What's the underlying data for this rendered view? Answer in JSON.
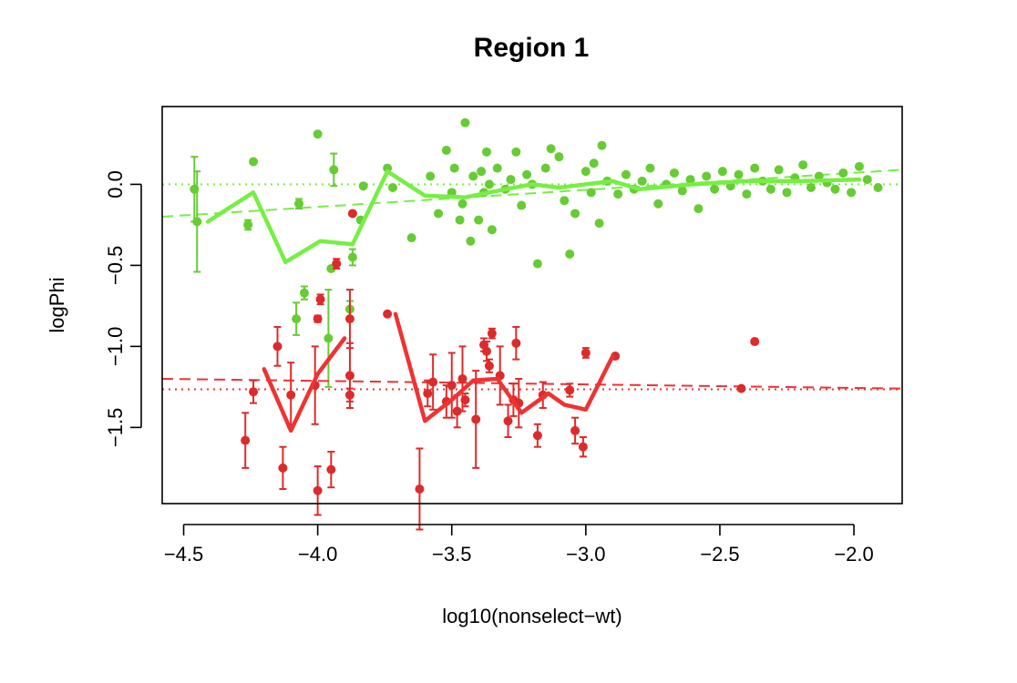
{
  "chart_data": {
    "type": "scatter",
    "title": "Region 1",
    "xlabel": "log10(nonselect−wt)",
    "ylabel": "logPhi",
    "xlim": [
      -4.58,
      -1.82
    ],
    "ylim": [
      -1.97,
      0.48
    ],
    "grid": false,
    "legend": "none",
    "x_ticks": [
      -4.5,
      -4.0,
      -3.5,
      -3.0,
      -2.5,
      -2.0
    ],
    "x_tick_labels": [
      "−4.5",
      "−4.0",
      "−3.5",
      "−3.0",
      "−2.5",
      "−2.0"
    ],
    "y_ticks": [
      0.0,
      -0.5,
      -1.0,
      -1.5
    ],
    "y_tick_labels": [
      "0.0",
      "−0.5",
      "−1.0",
      "−1.5"
    ],
    "colors": {
      "green": "#66cc33",
      "green_line": "#77ee44",
      "red": "#dd2b2b",
      "red_line": "#ee3333"
    },
    "series": [
      {
        "color": "green",
        "points": [
          [
            -4.46,
            -0.03,
            0.2
          ],
          [
            -4.45,
            -0.23,
            0.31
          ],
          [
            -4.26,
            -0.25,
            0.03
          ],
          [
            -4.24,
            0.14,
            0
          ],
          [
            -4.07,
            -0.12,
            0.03
          ],
          [
            -3.94,
            0.09,
            0.1
          ],
          [
            -4.0,
            0.31,
            0
          ],
          [
            -3.87,
            -0.45,
            0.05
          ],
          [
            -3.95,
            -0.52,
            0
          ],
          [
            -3.93,
            -0.49,
            0
          ],
          [
            -4.05,
            -0.67,
            0.04
          ],
          [
            -4.08,
            -0.83,
            0.1
          ],
          [
            -3.96,
            -0.95,
            0.3
          ],
          [
            -3.88,
            -0.77,
            0.05
          ],
          [
            -3.83,
            -0.01,
            0
          ],
          [
            -3.84,
            -0.22,
            0
          ],
          [
            -3.74,
            0.1,
            0
          ],
          [
            -3.72,
            -0.02,
            0
          ],
          [
            -3.65,
            -0.33,
            0
          ],
          [
            -3.58,
            0.05,
            0
          ],
          [
            -3.55,
            -0.18,
            0
          ],
          [
            -3.52,
            0.21,
            0
          ],
          [
            -3.5,
            -0.05,
            0
          ],
          [
            -3.49,
            0.1,
            0
          ],
          [
            -3.47,
            -0.22,
            0
          ],
          [
            -3.46,
            -0.12,
            0
          ],
          [
            -3.45,
            0.38,
            0
          ],
          [
            -3.43,
            -0.35,
            0
          ],
          [
            -3.42,
            0.05,
            0
          ],
          [
            -3.4,
            -0.22,
            0
          ],
          [
            -3.39,
            0.08,
            0
          ],
          [
            -3.38,
            -0.05,
            0
          ],
          [
            -3.37,
            0.2,
            0
          ],
          [
            -3.36,
            0.0,
            0
          ],
          [
            -3.35,
            -0.28,
            0
          ],
          [
            -3.33,
            0.1,
            0
          ],
          [
            -3.3,
            -0.03,
            0
          ],
          [
            -3.28,
            0.03,
            0
          ],
          [
            -3.26,
            0.2,
            0
          ],
          [
            -3.24,
            -0.13,
            0
          ],
          [
            -3.22,
            0.06,
            0
          ],
          [
            -3.2,
            0.0,
            0
          ],
          [
            -3.18,
            -0.49,
            0
          ],
          [
            -3.15,
            0.1,
            0
          ],
          [
            -3.13,
            0.22,
            0
          ],
          [
            -3.1,
            0.17,
            0
          ],
          [
            -3.08,
            -0.1,
            0
          ],
          [
            -3.06,
            -0.43,
            0
          ],
          [
            -3.04,
            -0.18,
            0
          ],
          [
            -3.0,
            0.08,
            0
          ],
          [
            -2.98,
            -0.05,
            0
          ],
          [
            -2.97,
            0.13,
            0
          ],
          [
            -2.95,
            -0.24,
            0
          ],
          [
            -2.94,
            0.24,
            0
          ],
          [
            -2.92,
            0.02,
            0
          ],
          [
            -2.88,
            -0.06,
            0
          ],
          [
            -2.85,
            0.06,
            0
          ],
          [
            -2.82,
            -0.03,
            0
          ],
          [
            -2.79,
            0.02,
            0
          ],
          [
            -2.76,
            0.1,
            0
          ],
          [
            -2.73,
            -0.12,
            0
          ],
          [
            -2.7,
            0.0,
            0
          ],
          [
            -2.67,
            0.07,
            0
          ],
          [
            -2.64,
            -0.04,
            0
          ],
          [
            -2.61,
            0.03,
            0
          ],
          [
            -2.58,
            -0.15,
            0
          ],
          [
            -2.55,
            0.05,
            0
          ],
          [
            -2.52,
            -0.03,
            0
          ],
          [
            -2.49,
            0.08,
            0
          ],
          [
            -2.46,
            -0.01,
            0
          ],
          [
            -2.43,
            0.06,
            0
          ],
          [
            -2.4,
            -0.06,
            0
          ],
          [
            -2.37,
            0.1,
            0
          ],
          [
            -2.34,
            0.02,
            0
          ],
          [
            -2.31,
            -0.03,
            0
          ],
          [
            -2.28,
            0.09,
            0
          ],
          [
            -2.25,
            -0.05,
            0
          ],
          [
            -2.22,
            0.04,
            0
          ],
          [
            -2.19,
            0.12,
            0
          ],
          [
            -2.16,
            -0.02,
            0
          ],
          [
            -2.13,
            0.05,
            0
          ],
          [
            -2.1,
            0.01,
            0
          ],
          [
            -2.07,
            -0.03,
            0
          ],
          [
            -2.04,
            0.07,
            0
          ],
          [
            -2.01,
            -0.05,
            0
          ],
          [
            -1.98,
            0.11,
            0
          ],
          [
            -1.95,
            0.03,
            0
          ],
          [
            -1.91,
            -0.02,
            0
          ]
        ],
        "smooth_line": [
          [
            -4.41,
            -0.23
          ],
          [
            -4.24,
            -0.05
          ],
          [
            -4.12,
            -0.48
          ],
          [
            -3.99,
            -0.35
          ],
          [
            -3.87,
            -0.37
          ],
          [
            -3.74,
            0.08
          ],
          [
            -3.6,
            -0.07
          ],
          [
            -3.45,
            -0.08
          ],
          [
            -3.3,
            -0.03
          ],
          [
            -3.2,
            0.0
          ],
          [
            -3.1,
            -0.02
          ],
          [
            -3.0,
            0.0
          ],
          [
            -2.9,
            0.02
          ],
          [
            -2.8,
            -0.03
          ],
          [
            -2.6,
            0.0
          ],
          [
            -2.4,
            0.02
          ],
          [
            -2.2,
            0.02
          ],
          [
            -1.98,
            0.03
          ]
        ],
        "fit_line": [
          [
            -4.58,
            -0.2
          ],
          [
            -1.82,
            0.09
          ]
        ],
        "reference_level": 0.0
      },
      {
        "color": "red",
        "points": [
          [
            -4.27,
            -1.58,
            0.17
          ],
          [
            -4.24,
            -1.28,
            0.07
          ],
          [
            -4.15,
            -1.0,
            0.12
          ],
          [
            -4.13,
            -1.75,
            0.13
          ],
          [
            -4.1,
            -1.3,
            0.2
          ],
          [
            -4.01,
            -1.24,
            0.24
          ],
          [
            -4.0,
            -0.83,
            0.02
          ],
          [
            -3.99,
            -0.71,
            0.03
          ],
          [
            -4.0,
            -1.89,
            0.15
          ],
          [
            -3.95,
            -1.76,
            0.11
          ],
          [
            -3.93,
            -0.49,
            0.03
          ],
          [
            -3.88,
            -0.83,
            0.18
          ],
          [
            -3.88,
            -1.18,
            0.2
          ],
          [
            -3.88,
            -1.3,
            0.04
          ],
          [
            -3.87,
            -0.18,
            0
          ],
          [
            -3.74,
            -0.8,
            0
          ],
          [
            -3.62,
            -1.88,
            0.25
          ],
          [
            -3.59,
            -1.29,
            0.08
          ],
          [
            -3.57,
            -1.22,
            0.17
          ],
          [
            -3.52,
            -1.34,
            0.1
          ],
          [
            -3.5,
            -1.24,
            0.2
          ],
          [
            -3.48,
            -1.4,
            0.1
          ],
          [
            -3.46,
            -1.2,
            0.2
          ],
          [
            -3.45,
            -1.33,
            0.04
          ],
          [
            -3.41,
            -1.45,
            0.3
          ],
          [
            -3.38,
            -0.99,
            0.04
          ],
          [
            -3.37,
            -1.03,
            0.06
          ],
          [
            -3.36,
            -1.12,
            0.04
          ],
          [
            -3.35,
            -0.92,
            0.03
          ],
          [
            -3.32,
            -1.18,
            0.18
          ],
          [
            -3.29,
            -1.46,
            0.1
          ],
          [
            -3.27,
            -1.33,
            0.1
          ],
          [
            -3.26,
            -0.98,
            0.1
          ],
          [
            -3.25,
            -1.35,
            0.15
          ],
          [
            -3.18,
            -1.55,
            0.07
          ],
          [
            -3.16,
            -1.3,
            0.08
          ],
          [
            -3.06,
            -1.27,
            0.04
          ],
          [
            -3.04,
            -1.52,
            0.08
          ],
          [
            -3.0,
            -1.04,
            0.03
          ],
          [
            -3.01,
            -1.62,
            0.06
          ],
          [
            -2.89,
            -1.06,
            0
          ],
          [
            -2.42,
            -1.26,
            0
          ],
          [
            -2.37,
            -0.97,
            0
          ]
        ],
        "smooth_lines": [
          [
            [
              -4.2,
              -1.14
            ],
            [
              -4.1,
              -1.52
            ],
            [
              -4.0,
              -1.17
            ],
            [
              -3.9,
              -0.95
            ]
          ],
          [
            [
              -3.71,
              -0.8
            ],
            [
              -3.6,
              -1.46
            ],
            [
              -3.5,
              -1.33
            ],
            [
              -3.42,
              -1.21
            ],
            [
              -3.33,
              -1.2
            ],
            [
              -3.24,
              -1.41
            ],
            [
              -3.14,
              -1.29
            ],
            [
              -3.08,
              -1.36
            ],
            [
              -3.0,
              -1.39
            ],
            [
              -2.9,
              -1.06
            ]
          ]
        ],
        "fit_line": [
          [
            -4.58,
            -1.2
          ],
          [
            -1.82,
            -1.26
          ]
        ],
        "reference_level": -1.265
      }
    ]
  }
}
